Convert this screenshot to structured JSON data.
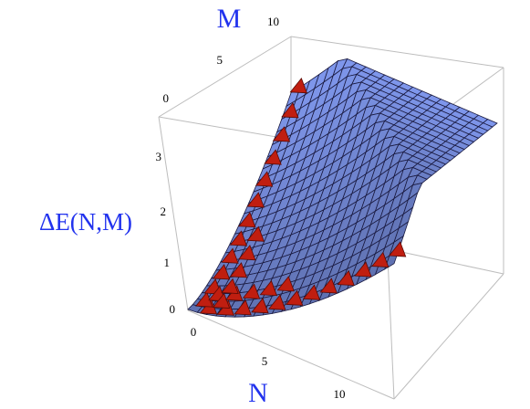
{
  "chart_data": {
    "type": "surface3d",
    "xlabel": "N",
    "ylabel": "M",
    "zlabel": "ΔE(N,M)",
    "x_ticks": [
      "0",
      "5",
      "10"
    ],
    "y_ticks": [
      "0",
      "5",
      "10"
    ],
    "z_ticks": [
      "0",
      "1",
      "2",
      "3"
    ],
    "xlim": [
      0,
      12
    ],
    "ylim": [
      0,
      12
    ],
    "zlim": [
      0,
      3.8
    ],
    "surface": {
      "description_formula": "z = (N + M)^1.5 * 0.1 approx, shown for N,M in [0,12]",
      "grid_n": 22,
      "color": "#7f97ec",
      "mesh_color": "#1a1a40"
    },
    "points_color": "#c01e10"
  }
}
